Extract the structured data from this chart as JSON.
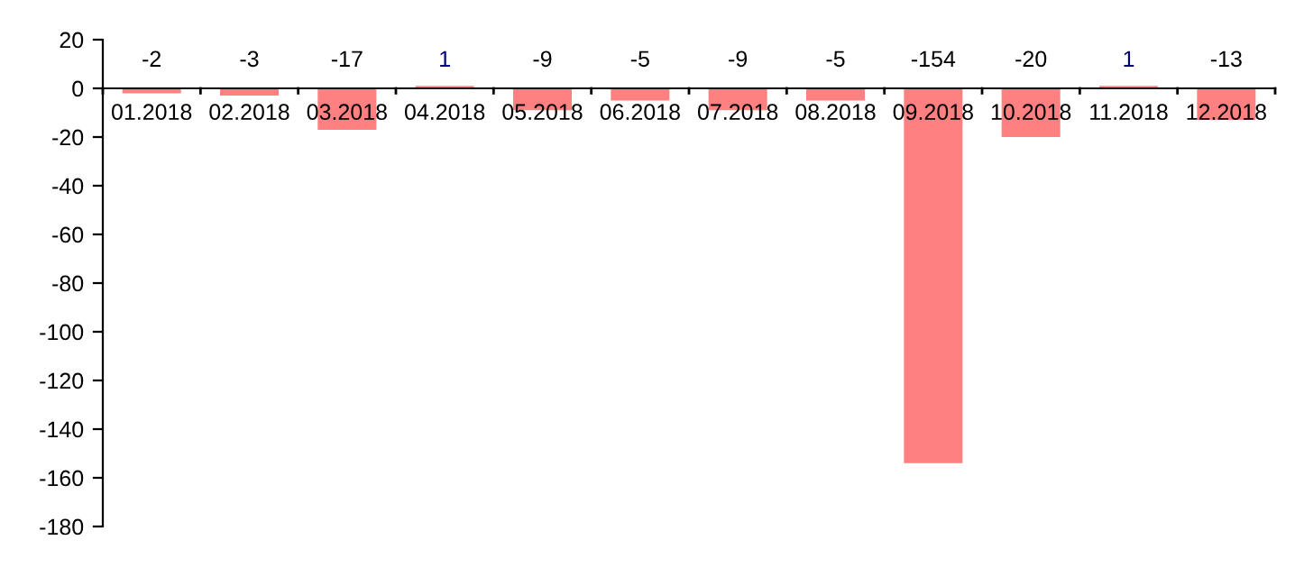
{
  "chart_data": {
    "type": "bar",
    "categories": [
      "01.2018",
      "02.2018",
      "03.2018",
      "04.2018",
      "05.2018",
      "06.2018",
      "07.2018",
      "08.2018",
      "09.2018",
      "10.2018",
      "11.2018",
      "12.2018"
    ],
    "values": [
      -2,
      -3,
      -17,
      1,
      -9,
      -5,
      -9,
      -5,
      -154,
      -20,
      1,
      -13
    ],
    "color": "#ff8080",
    "ylim": [
      -180,
      20
    ],
    "yticks": [
      -180,
      -160,
      -140,
      -120,
      -100,
      -80,
      -60,
      -40,
      -20,
      0,
      20
    ],
    "grid": false,
    "data_labels": true
  }
}
